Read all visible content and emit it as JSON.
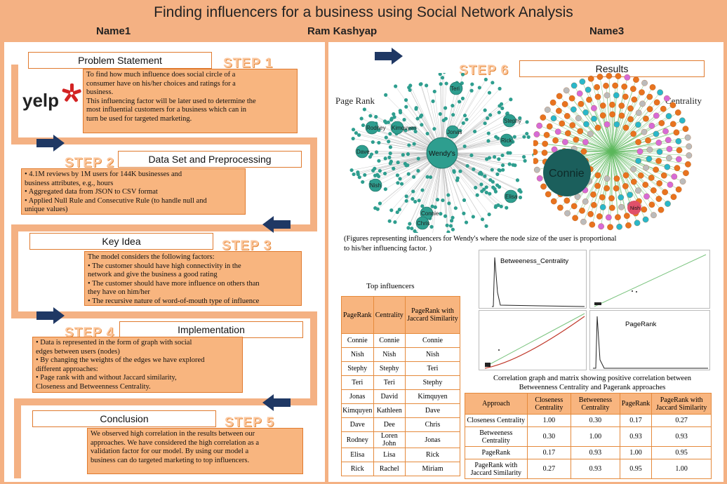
{
  "header": {
    "title": "Finding influencers for a business using Social Network Analysis",
    "authors": [
      "Name1",
      "Ram  Kashyap",
      "Name3"
    ]
  },
  "logo": {
    "text": "yelp"
  },
  "steps": [
    {
      "label": "STEP 1",
      "heading": "Problem  Statement",
      "lines": [
        "To find how much  influence does social circle of a",
        "consumer  have on his/her choices and ratings  for  a",
        "business.",
        "This influencing factor will be later used to determine the",
        "most influential customers  for a business which can in",
        "turn be used for targeted marketing."
      ]
    },
    {
      "label": "STEP 2",
      "heading": "Data Set and Preprocessing",
      "lines": [
        "• 4.1M  reviews by 1M  users for 144K  businesses and",
        "business  attributes, e.g., hours",
        "• Aggregated data from JSON to CSV format",
        "• Applied  Null Rule and Consecutive Rule (to handle null and",
        "unique values)"
      ]
    },
    {
      "label": "STEP 3",
      "heading": "Key Idea",
      "lines": [
        "The model considers  the  following factors:",
        "• The customer should have high connectivity in the",
        "network and give the business  a good rating",
        "• The customer should have more influence on others than",
        "they have on him/her",
        "• The recursive nature of word-of-mouth  type of influence"
      ]
    },
    {
      "label": "STEP 4",
      "heading": "Implementation",
      "lines": [
        "• Data is represented in the form of graph  with social",
        "edges between users  (nodes)",
        "• By changing the weights of the edges we have explored",
        "different  approaches:",
        "• Page rank with and without Jaccard  similarity,",
        "Closeness and Betweenness Centrality."
      ]
    },
    {
      "label": "STEP 5",
      "heading": "Conclusion",
      "lines": [
        "We observed high correlation  in the results between our",
        "approaches.  We have considered the high correlation as a",
        "validation factor for our model.  By using our model a",
        "business  can do targeted marketing  to top influencers."
      ]
    },
    {
      "label": "STEP 6",
      "heading": "Results"
    }
  ],
  "graphs": {
    "left_label": "Page Rank",
    "right_label": "Centrality",
    "left_nodes": [
      "Wendy's",
      "Nish",
      "Dave",
      "Rodney",
      "Kimquyen",
      "Jonas",
      "Stephy",
      "Rick",
      "Elisa",
      "Teri",
      "Connie",
      "Chris"
    ],
    "right_nodes": [
      "Connie",
      "Nish"
    ],
    "caption_line1": "(Figures representing influencers for Wendy's where the node size of the user is proportional",
    "caption_line2": "to his/her influencing factor. )"
  },
  "top_influencers": {
    "title": "Top influencers",
    "columns": [
      "PageRank",
      "Centrality",
      "PageRank with Jaccard Similarity"
    ],
    "rows": [
      [
        "Connie",
        "Connie",
        "Connie"
      ],
      [
        "Nish",
        "Nish",
        "Nish"
      ],
      [
        "Stephy",
        "Stephy",
        "Teri"
      ],
      [
        "Teri",
        "Teri",
        "Stephy"
      ],
      [
        "Jonas",
        "David",
        "Kimquyen"
      ],
      [
        "Kimquyen",
        "Kathleen",
        "Dave"
      ],
      [
        "Dave",
        "Dee",
        "Chris"
      ],
      [
        "Rodney",
        "Loren John",
        "Jonas"
      ],
      [
        "Elisa",
        "Lisa",
        "Rick"
      ],
      [
        "Rick",
        "Rachel",
        "Miriam"
      ]
    ]
  },
  "correlation_plots": {
    "panel_betweenness": "Betweeness_Centrality",
    "panel_pagerank": "PageRank",
    "caption_line1": "Correlation graph and matrix showing positive correlation between",
    "caption_line2": "Betweenness Centrality and Pagerank approaches"
  },
  "correlation_matrix": {
    "columns": [
      "Approach",
      "Closeness Centrality",
      "Betweeness Centrality",
      "PageRank",
      "PageRank with Jaccard Similarity"
    ],
    "rows": [
      [
        "Closeness Centrality",
        "1.00",
        "0.30",
        "0.17",
        "0.27"
      ],
      [
        "Betweeness Centrality",
        "0.30",
        "1.00",
        "0.93",
        "0.93"
      ],
      [
        "PageRank",
        "0.17",
        "0.93",
        "1.00",
        "0.95"
      ],
      [
        "PageRank with Jaccard Similarity",
        "0.27",
        "0.93",
        "0.95",
        "1.00"
      ]
    ]
  },
  "colors": {
    "background": "#f4b183",
    "box": "#f8b57f",
    "border": "#e07a2e",
    "arrow": "#1f3864",
    "teal": "#2e9e8f",
    "node_orange": "#e8731f"
  }
}
